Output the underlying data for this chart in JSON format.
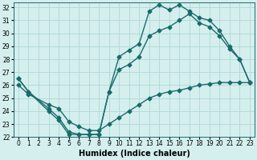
{
  "xlabel": "Humidex (Indice chaleur)",
  "bg_color": "#d4efee",
  "grid_color": "#afd8d5",
  "line_color": "#1a6b6b",
  "xlim": [
    -0.5,
    23.5
  ],
  "ylim": [
    22,
    32.4
  ],
  "xticks": [
    0,
    1,
    2,
    3,
    4,
    5,
    6,
    7,
    8,
    9,
    10,
    11,
    12,
    13,
    14,
    15,
    16,
    17,
    18,
    19,
    20,
    21,
    22,
    23
  ],
  "yticks": [
    22,
    23,
    24,
    25,
    26,
    27,
    28,
    29,
    30,
    31,
    32
  ],
  "line1_x": [
    0,
    1,
    3,
    4,
    5,
    6,
    7,
    8,
    9,
    10,
    11,
    12,
    13,
    14,
    15,
    16,
    17,
    18,
    19,
    20,
    21,
    22,
    23
  ],
  "line1_y": [
    26.5,
    25.5,
    24.0,
    23.3,
    22.2,
    22.2,
    22.2,
    22.2,
    25.5,
    28.2,
    28.7,
    29.2,
    31.7,
    32.2,
    31.8,
    32.2,
    31.7,
    31.2,
    31.0,
    30.2,
    29.0,
    28.0,
    26.2
  ],
  "line2_x": [
    0,
    1,
    3,
    4,
    5,
    6,
    7,
    8,
    9,
    10,
    11,
    12,
    13,
    14,
    15,
    16,
    17,
    18,
    19,
    20,
    21,
    22,
    23
  ],
  "line2_y": [
    26.5,
    25.5,
    24.2,
    23.5,
    22.4,
    22.2,
    22.2,
    22.2,
    25.5,
    27.2,
    27.6,
    28.2,
    29.8,
    30.2,
    30.5,
    31.0,
    31.5,
    30.8,
    30.5,
    29.8,
    28.8,
    28.0,
    26.2
  ],
  "line3_x": [
    0,
    1,
    3,
    4,
    5,
    6,
    7,
    8,
    9,
    10,
    11,
    12,
    13,
    14,
    15,
    16,
    17,
    18,
    19,
    20,
    21,
    22,
    23
  ],
  "line3_y": [
    26.0,
    25.3,
    24.5,
    24.2,
    23.2,
    22.8,
    22.5,
    22.5,
    23.0,
    23.5,
    24.0,
    24.5,
    25.0,
    25.3,
    25.5,
    25.6,
    25.8,
    26.0,
    26.1,
    26.2,
    26.2,
    26.2,
    26.2
  ],
  "marker": "D",
  "markersize": 2.5,
  "linewidth": 1.0,
  "xlabel_fontsize": 7,
  "tick_fontsize": 5.5
}
